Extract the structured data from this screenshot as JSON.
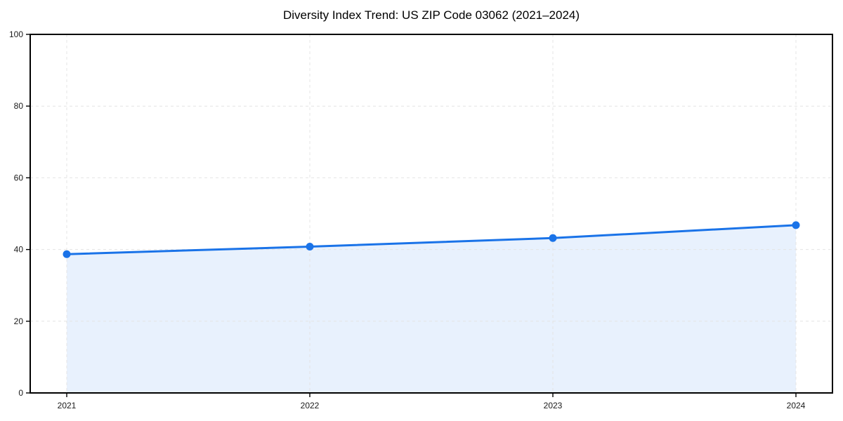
{
  "chart_data": {
    "type": "line",
    "title": "Diversity Index Trend: US ZIP Code 03062 (2021–2024)",
    "categories": [
      "2021",
      "2022",
      "2023",
      "2024"
    ],
    "series": [
      {
        "name": "Diversity Index",
        "values": [
          38.7,
          40.8,
          43.2,
          46.8
        ]
      }
    ],
    "xlabel": "",
    "ylabel": "",
    "ylim": [
      0,
      100
    ],
    "yticks": [
      0,
      20,
      40,
      60,
      80,
      100
    ],
    "grid": true,
    "grid_style": "dashed",
    "legend_position": "none",
    "marker": "circle",
    "area_under_line": true,
    "colors": {
      "line": "#1a73e8",
      "marker": "#1a73e8",
      "area_fill": "rgba(26,115,232,0.10)",
      "grid": "#e4e4e4",
      "spine": "#000000",
      "tick_label": "#1a1a1a",
      "title": "#000000",
      "background": "#ffffff"
    }
  }
}
